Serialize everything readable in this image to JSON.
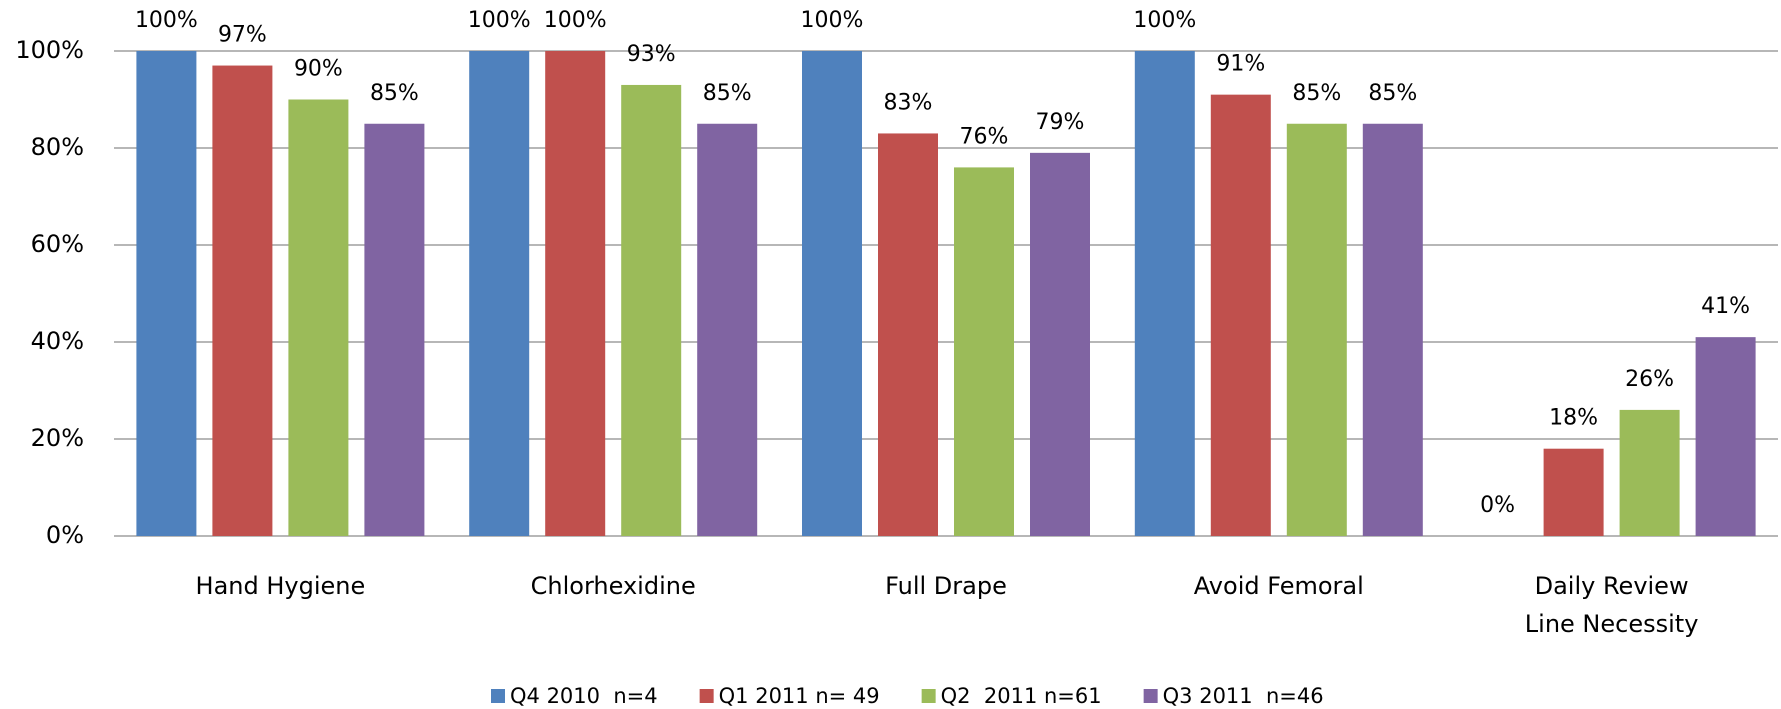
{
  "chart_data": {
    "type": "bar",
    "categories": [
      "Hand Hygiene",
      "Chlorhexidine",
      "Full Drape",
      "Avoid Femoral",
      "Daily Review Line Necessity"
    ],
    "series": [
      {
        "name": "Q4 2010  n=4",
        "color": "#4f81bd",
        "values": [
          100,
          100,
          100,
          100,
          0
        ],
        "value_labels": [
          "100%",
          "100%",
          "100%",
          "100%",
          "0%"
        ]
      },
      {
        "name": "Q1 2011 n= 49",
        "color": "#c0504d",
        "values": [
          97,
          100,
          83,
          91,
          18
        ],
        "value_labels": [
          "97%",
          "100%",
          "83%",
          "91%",
          "18%"
        ]
      },
      {
        "name": "Q2  2011 n=61",
        "color": "#9bbb59",
        "values": [
          90,
          93,
          76,
          85,
          26
        ],
        "value_labels": [
          "90%",
          "93%",
          "76%",
          "85%",
          "26%"
        ]
      },
      {
        "name": "Q3 2011  n=46",
        "color": "#8064a2",
        "values": [
          85,
          85,
          79,
          85,
          41
        ],
        "value_labels": [
          "85%",
          "85%",
          "79%",
          "85%",
          "41%"
        ]
      }
    ],
    "ylim": [
      0,
      100
    ],
    "yticks": [
      {
        "value": 0,
        "label": "0%"
      },
      {
        "value": 20,
        "label": "20%"
      },
      {
        "value": 40,
        "label": "40%"
      },
      {
        "value": 60,
        "label": "60%"
      },
      {
        "value": 80,
        "label": "80%"
      },
      {
        "value": 100,
        "label": "100%"
      }
    ],
    "grid": true
  }
}
